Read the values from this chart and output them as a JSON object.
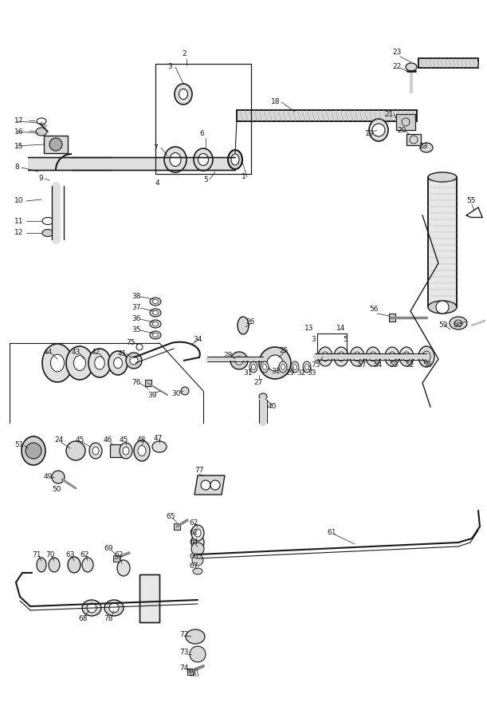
{
  "background_color": "#ffffff",
  "line_color": "#1a1a1a",
  "text_color": "#1a1a1a",
  "fig_width": 6.11,
  "fig_height": 9.0
}
